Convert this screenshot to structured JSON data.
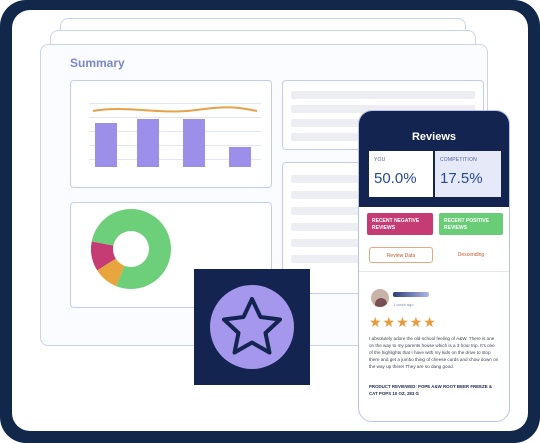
{
  "dashboard": {
    "title": "Summary",
    "bar_chart": {
      "values": [
        55,
        60,
        60,
        25
      ],
      "max": 100
    },
    "donut_chart": {
      "segments": [
        {
          "value": 78,
          "color": "#6dcf7a"
        },
        {
          "value": 10,
          "color": "#e8a53e"
        },
        {
          "value": 12,
          "color": "#c43c73"
        }
      ]
    }
  },
  "phone": {
    "title": "Reviews",
    "you_label": "YOU",
    "you_value": "50.0%",
    "competition_label": "COMPETITION",
    "competition_value": "17.5%",
    "negative_tag": "RECENT NEGATIVE REVIEWS",
    "positive_tag": "RECENT POSITIVE REVIEWS",
    "review_date_button": "Review Data",
    "sort_label": "Descending",
    "review": {
      "time_ago": "1 week ago",
      "stars": "★★★★★",
      "text": "I absolutely adore the old-school feeling of A&W. There is one on the way to my parents house which is a 3 hour trip. It's one of the highlights that I have with my kids on the drive to stop there and get a jumbo thing of cheese curds and chow down on the way up there! They are so dang good.",
      "product": "PRODUCT REVIEWED: POPE A&W ROOT BEER FREEZE & CAT POPS 10 OZ, 283 G"
    }
  },
  "colors": {
    "navy": "#12244f",
    "accent_purple": "#9b8fe9",
    "negative": "#c43c73",
    "positive": "#69cd78",
    "star": "#ea9a39"
  }
}
